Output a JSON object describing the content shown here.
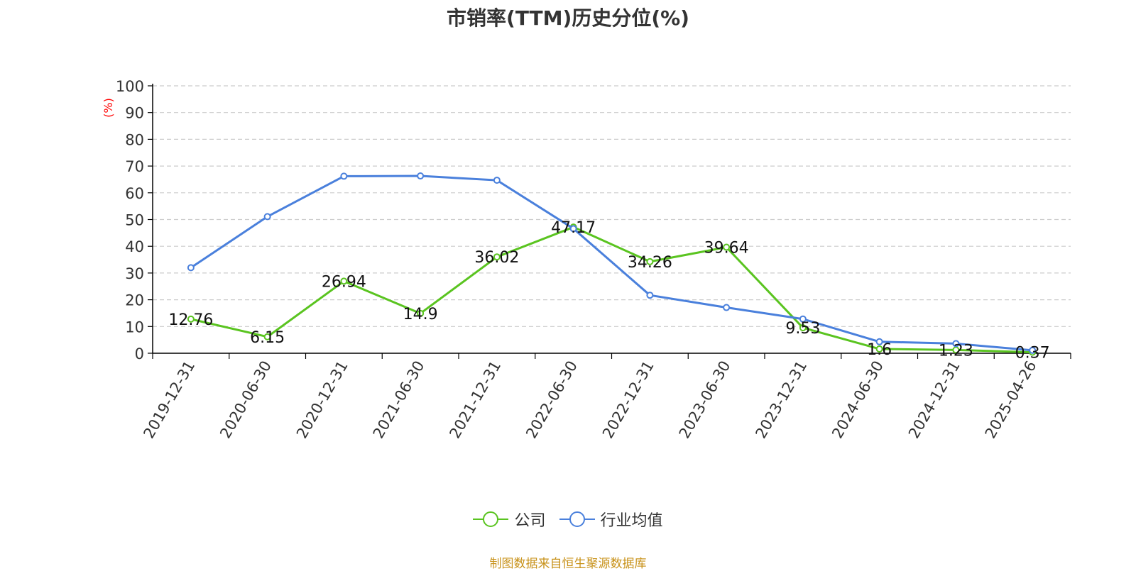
{
  "title": "市销率(TTM)历史分位(%)",
  "source_note": "制图数据来自恒生聚源数据库",
  "colors": {
    "company": "#5ac420",
    "industry": "#4a80dc",
    "grid": "#cccccc",
    "axis": "#000000",
    "unit": "#ff0000"
  },
  "chart_data": {
    "type": "line",
    "title": "市销率(TTM)历史分位(%)",
    "ylabel": "(%)",
    "ylim": [
      0,
      100
    ],
    "yticks": [
      "0",
      "10",
      "20",
      "30",
      "40",
      "50",
      "60",
      "70",
      "80",
      "90",
      "100"
    ],
    "categories": [
      "2019-12-31",
      "2020-06-30",
      "2020-12-31",
      "2021-06-30",
      "2021-12-31",
      "2022-06-30",
      "2022-12-31",
      "2023-06-30",
      "2023-12-31",
      "2024-06-30",
      "2024-12-31",
      "2025-04-26"
    ],
    "grid": true,
    "legend_position": "bottom",
    "series": [
      {
        "name": "公司",
        "color": "#5ac420",
        "values": [
          12.76,
          6.15,
          26.94,
          14.9,
          36.02,
          47.17,
          34.26,
          39.64,
          9.53,
          1.6,
          1.23,
          0.37
        ],
        "labels": [
          "12.76",
          "6.15",
          "26.94",
          "14.9",
          "36.02",
          "47.17",
          "34.26",
          "39.64",
          "9.53",
          "1.6",
          "1.23",
          "0.37"
        ]
      },
      {
        "name": "行业均值",
        "color": "#4a80dc",
        "values": [
          32.0,
          51.1,
          66.2,
          66.3,
          64.7,
          46.6,
          21.7,
          17.1,
          12.8,
          4.3,
          3.6,
          1.1
        ]
      }
    ]
  }
}
